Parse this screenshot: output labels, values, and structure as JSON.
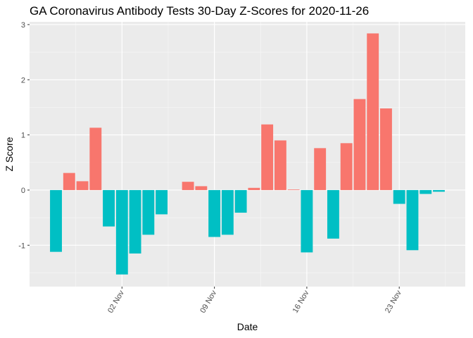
{
  "chart_data": {
    "type": "bar",
    "title": "GA Coronavirus Antibody Tests 30-Day Z-Scores for 2020-11-26",
    "xlabel": "Date",
    "ylabel": "Z Score",
    "x": [
      "2020-10-28",
      "2020-10-29",
      "2020-10-30",
      "2020-10-31",
      "2020-11-01",
      "2020-11-02",
      "2020-11-03",
      "2020-11-04",
      "2020-11-05",
      "2020-11-06",
      "2020-11-07",
      "2020-11-08",
      "2020-11-09",
      "2020-11-10",
      "2020-11-11",
      "2020-11-12",
      "2020-11-13",
      "2020-11-14",
      "2020-11-15",
      "2020-11-16",
      "2020-11-17",
      "2020-11-18",
      "2020-11-19",
      "2020-11-20",
      "2020-11-21",
      "2020-11-22",
      "2020-11-23",
      "2020-11-24",
      "2020-11-25",
      "2020-11-26"
    ],
    "values": [
      -1.12,
      0.31,
      0.16,
      1.13,
      -0.66,
      -1.53,
      -1.15,
      -0.81,
      -0.44,
      0.0,
      0.15,
      0.07,
      -0.85,
      -0.81,
      -0.41,
      0.04,
      1.19,
      0.9,
      0.01,
      -1.13,
      0.76,
      -0.88,
      0.85,
      1.65,
      2.84,
      1.48,
      -0.25,
      -1.09,
      -0.07,
      -0.03
    ],
    "ylim": [
      -1.75,
      3.05
    ],
    "yticks": [
      -1,
      0,
      1,
      2,
      3
    ],
    "xticks": [
      {
        "date": "2020-11-02",
        "label": "02 Nov"
      },
      {
        "date": "2020-11-09",
        "label": "09 Nov"
      },
      {
        "date": "2020-11-16",
        "label": "16 Nov"
      },
      {
        "date": "2020-11-23",
        "label": "23 Nov"
      }
    ],
    "grid": true,
    "legend": "none",
    "colors": {
      "positive": "#F8766D",
      "negative": "#00BFC4",
      "panel": "#EBEBEB",
      "grid_major": "#FFFFFF",
      "grid_minor": "#F7F7F7"
    }
  }
}
